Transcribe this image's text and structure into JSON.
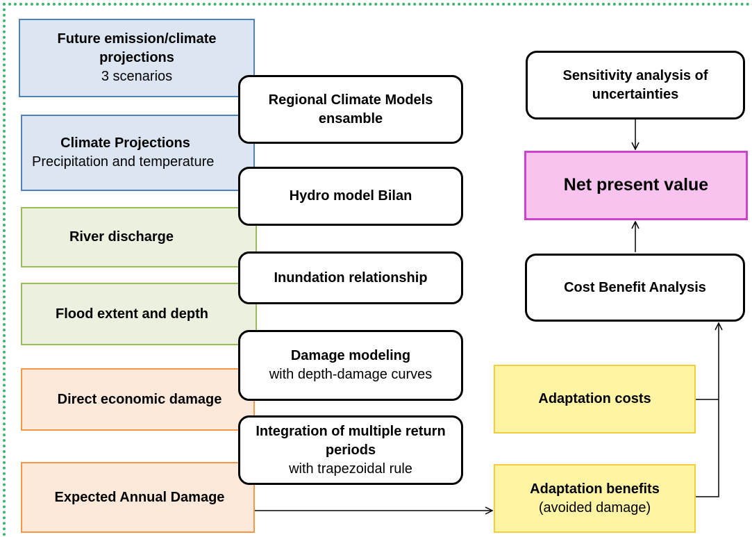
{
  "nodes": [
    {
      "title": "Future emission/climate projections",
      "subtitle": "3 scenarios"
    },
    {
      "title": "Climate Projections",
      "subtitle": "Precipitation and temperature"
    },
    {
      "title": "River discharge"
    },
    {
      "title": "Flood extent and depth"
    },
    {
      "title": "Direct economic damage"
    },
    {
      "title": "Expected Annual Damage"
    },
    {
      "title": "Regional Climate Models ensamble"
    },
    {
      "title": "Hydro model Bilan"
    },
    {
      "title": "Inundation relationship"
    },
    {
      "title": "Damage modeling",
      "subtitle": "with depth-damage curves"
    },
    {
      "title": "Integration of multiple return periods",
      "subtitle": "with trapezoidal rule"
    },
    {
      "title": "Sensitivity analysis of uncertainties"
    },
    {
      "title": "Net present value"
    },
    {
      "title": "Cost Benefit Analysis"
    },
    {
      "title": "Adaptation costs"
    },
    {
      "title": "Adaptation benefits",
      "subtitle": "(avoided damage)"
    }
  ]
}
